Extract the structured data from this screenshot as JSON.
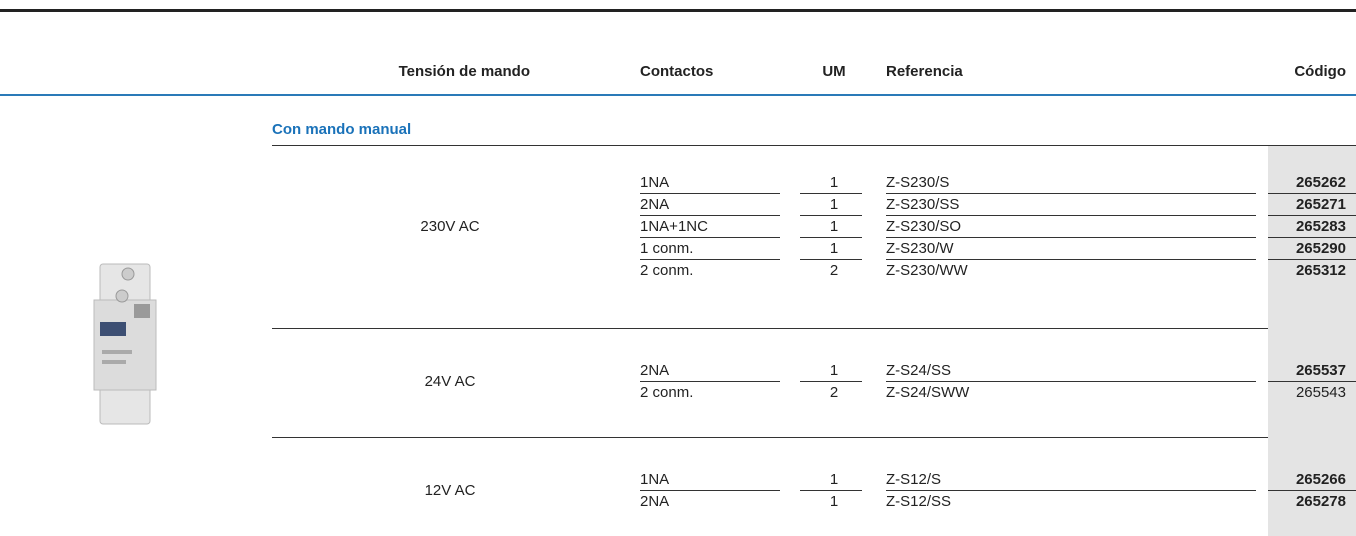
{
  "header": {
    "columns": [
      "Tensión de mando",
      "Contactos",
      "UM",
      "Referencia",
      "Código"
    ]
  },
  "section": {
    "title": "Con mando manual",
    "groups": [
      {
        "voltage": "230V AC",
        "rows": [
          {
            "contacts": "1NA",
            "um": 1,
            "reference": "Z-S230/S",
            "code": "265262",
            "bold": true
          },
          {
            "contacts": "2NA",
            "um": 1,
            "reference": "Z-S230/SS",
            "code": "265271",
            "bold": true
          },
          {
            "contacts": "1NA+1NC",
            "um": 1,
            "reference": "Z-S230/SO",
            "code": "265283",
            "bold": true
          },
          {
            "contacts": "1 conm.",
            "um": 1,
            "reference": "Z-S230/W",
            "code": "265290",
            "bold": true
          },
          {
            "contacts": "2 conm.",
            "um": 2,
            "reference": "Z-S230/WW",
            "code": "265312",
            "bold": true
          }
        ]
      },
      {
        "voltage": "24V AC",
        "rows": [
          {
            "contacts": "2NA",
            "um": 1,
            "reference": "Z-S24/SS",
            "code": "265537",
            "bold": true
          },
          {
            "contacts": "2 conm.",
            "um": 2,
            "reference": "Z-S24/SWW",
            "code": "265543",
            "bold": false
          }
        ]
      },
      {
        "voltage": "12V AC",
        "rows": [
          {
            "contacts": "1NA",
            "um": 1,
            "reference": "Z-S12/S",
            "code": "265266",
            "bold": true
          },
          {
            "contacts": "2NA",
            "um": 1,
            "reference": "Z-S12/SS",
            "code": "265278",
            "bold": true
          }
        ]
      }
    ]
  }
}
